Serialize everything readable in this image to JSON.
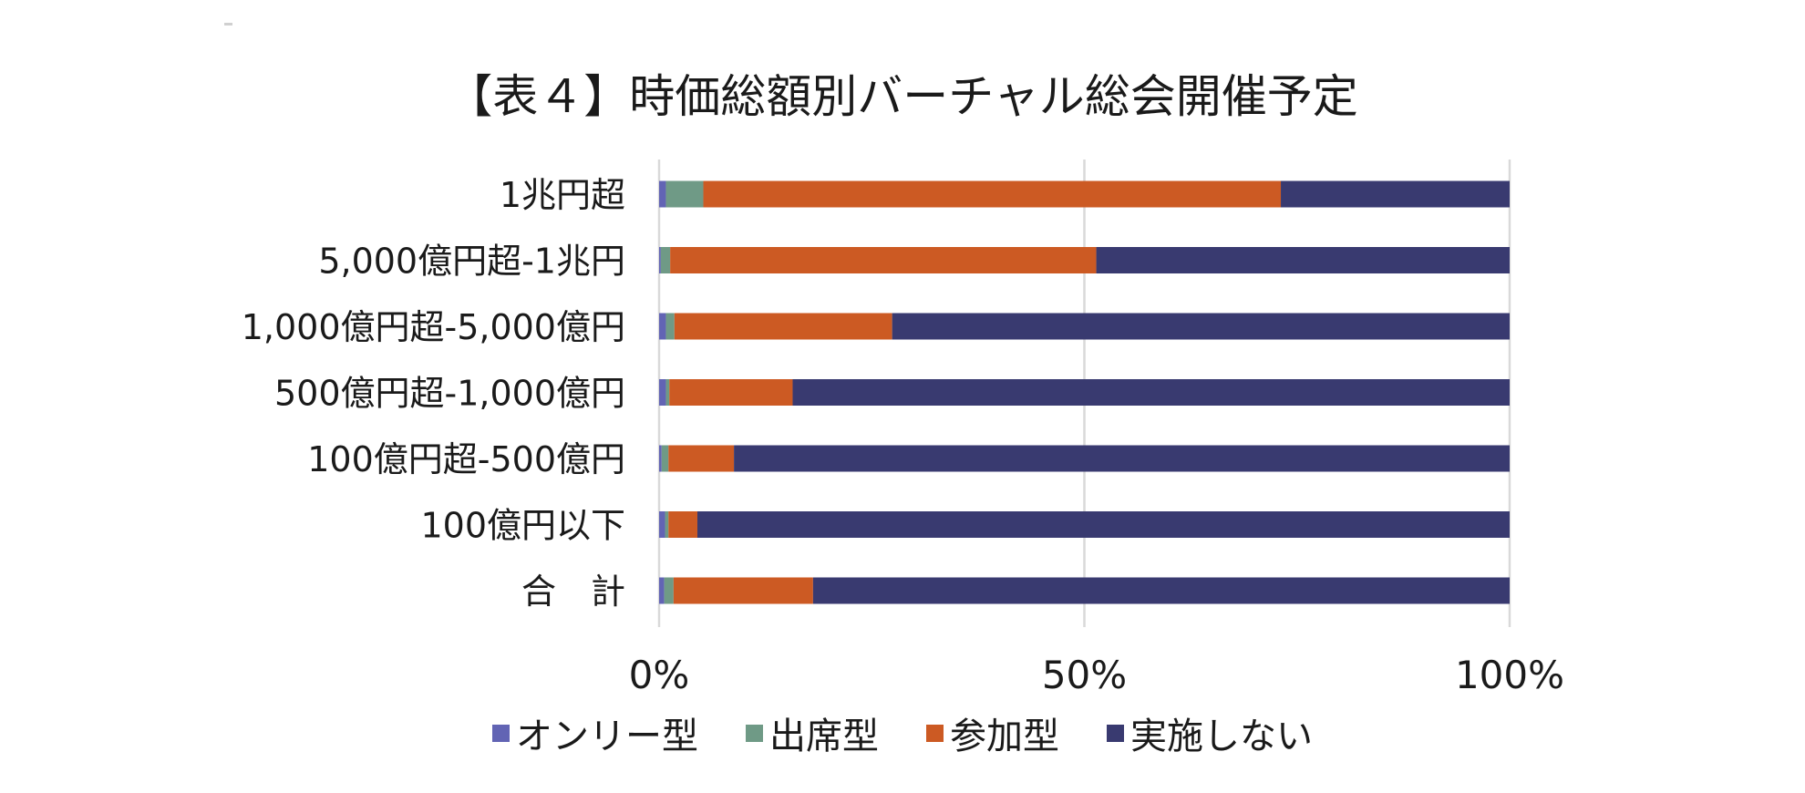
{
  "chart_data": {
    "type": "bar",
    "orientation": "horizontal",
    "stacked": "percent",
    "title": "【表４】時価総額別バーチャル総会開催予定",
    "categories": [
      "1兆円超",
      "5,000億円超-1兆円",
      "1,000億円超-5,000億円",
      "500億円超-1,000億円",
      "100億円超-500億円",
      "100億円以下",
      "合　計"
    ],
    "series": [
      {
        "name": "オンリー型",
        "color": "#6264b4",
        "values": [
          0.8,
          0.2,
          0.8,
          0.8,
          0.3,
          0.7,
          0.6
        ]
      },
      {
        "name": "出席型",
        "color": "#6f9a86",
        "values": [
          4.4,
          1.1,
          1.0,
          0.4,
          0.8,
          0.4,
          1.1
        ]
      },
      {
        "name": "参加型",
        "color": "#cc5a23",
        "values": [
          67.9,
          50.1,
          25.6,
          14.5,
          7.7,
          3.4,
          16.4
        ]
      },
      {
        "name": "実施しない",
        "color": "#393a70",
        "values": [
          26.9,
          48.6,
          72.6,
          84.3,
          91.2,
          95.5,
          81.9
        ]
      }
    ],
    "xticks": [
      "0%",
      "50%",
      "100%"
    ],
    "xlim": [
      0,
      100
    ],
    "grid": true,
    "legend": "bottom"
  }
}
